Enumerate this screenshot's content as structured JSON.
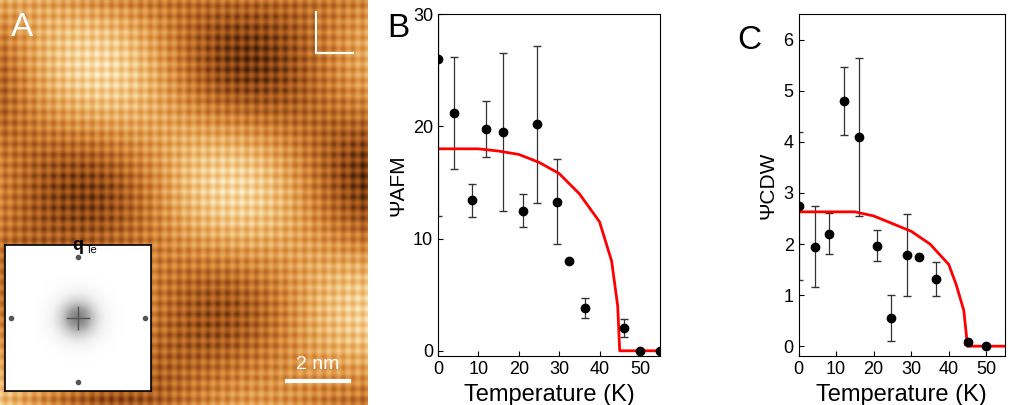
{
  "chart_data": [
    {
      "type": "image",
      "annotations": [
        "A",
        "q",
        "Te",
        "2 nm"
      ]
    },
    {
      "type": "scatter",
      "annotations": [
        "B"
      ],
      "x_label": "Temperature (K)",
      "y_label": "ΨAFM",
      "xlim": [
        0,
        55
      ],
      "xticks": [
        0,
        10,
        20,
        30,
        40,
        50
      ],
      "ylim": [
        -0.5,
        30
      ],
      "yticks": [
        0,
        10,
        20,
        30
      ],
      "series": [
        {
          "type": "scatter",
          "color": "#000000",
          "marker": "circle",
          "x": [
            0,
            4,
            8.5,
            12,
            16,
            21,
            24.5,
            29.5,
            32.5,
            36.5,
            46,
            50,
            55
          ],
          "values": [
            26,
            21.2,
            13.4,
            19.8,
            19.5,
            12.5,
            20.2,
            13.3,
            8,
            3.8,
            2,
            0,
            0
          ],
          "errors": [
            14,
            5,
            1.5,
            2.5,
            7,
            1.5,
            7,
            3.8,
            null,
            0.9,
            0.8,
            null,
            null
          ]
        },
        {
          "type": "line",
          "color": "#ff0000",
          "line_style": "solid",
          "x": [
            0,
            10,
            15,
            20,
            25,
            30,
            35,
            40,
            43,
            44.5,
            45,
            55
          ],
          "values": [
            18,
            18,
            17.8,
            17.5,
            16.8,
            15.8,
            14,
            11.5,
            8,
            4,
            0,
            0
          ]
        }
      ]
    },
    {
      "type": "scatter",
      "annotations": [
        "C"
      ],
      "x_label": "Temperature (K)",
      "y_label": "ΨCDW",
      "xlim": [
        0,
        55
      ],
      "xticks": [
        0,
        10,
        20,
        30,
        40,
        50
      ],
      "ylim": [
        -0.2,
        6.5
      ],
      "yticks": [
        0,
        1,
        2,
        3,
        4,
        5,
        6
      ],
      "series": [
        {
          "type": "scatter",
          "color": "#000000",
          "marker": "circle",
          "x": [
            0,
            4.5,
            8,
            12,
            16,
            21,
            24.5,
            29,
            32,
            36.5,
            45,
            50
          ],
          "values": [
            2.75,
            1.95,
            2.2,
            4.8,
            4.1,
            1.97,
            0.55,
            1.78,
            1.75,
            1.32,
            0.08,
            0
          ],
          "errors": [
            1.45,
            0.8,
            0.4,
            0.67,
            1.55,
            0.3,
            0.45,
            0.8,
            null,
            0.33,
            0.05,
            null
          ]
        },
        {
          "type": "line",
          "color": "#ff0000",
          "line_style": "solid",
          "x": [
            0,
            15,
            20,
            25,
            30,
            35,
            40,
            42,
            44,
            45,
            55
          ],
          "values": [
            2.63,
            2.63,
            2.55,
            2.4,
            2.25,
            2.0,
            1.6,
            1.2,
            0.7,
            0,
            0
          ]
        }
      ]
    }
  ]
}
